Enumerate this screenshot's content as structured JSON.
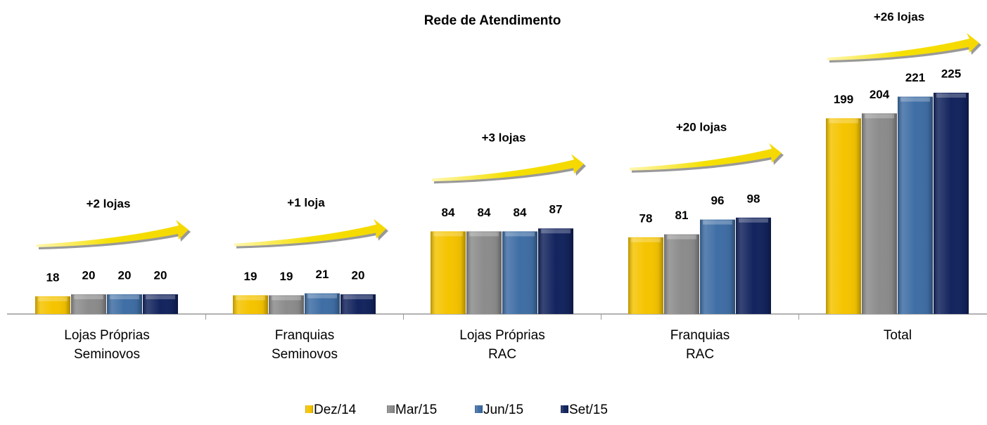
{
  "chart_data": {
    "type": "bar",
    "title": "Rede de Atendimento",
    "categories": [
      "Lojas Próprias\nSeminovos",
      "Franquias\nSeminovos",
      "Lojas Próprias\nRAC",
      "Franquias\nRAC",
      "Total"
    ],
    "series": [
      {
        "name": "Dez/14",
        "color": "#f5c400",
        "values": [
          18,
          19,
          84,
          78,
          199
        ]
      },
      {
        "name": "Mar/15",
        "color": "#8c8c8c",
        "values": [
          20,
          19,
          84,
          81,
          204
        ]
      },
      {
        "name": "Jun/15",
        "color": "#3f6ea5",
        "values": [
          20,
          21,
          84,
          96,
          221
        ]
      },
      {
        "name": "Set/15",
        "color": "#13245e",
        "values": [
          20,
          20,
          87,
          98,
          225
        ]
      }
    ],
    "annotations": [
      "+2 lojas",
      "+1 loja",
      "+3 lojas",
      "+20 lojas",
      "+26 lojas"
    ]
  }
}
